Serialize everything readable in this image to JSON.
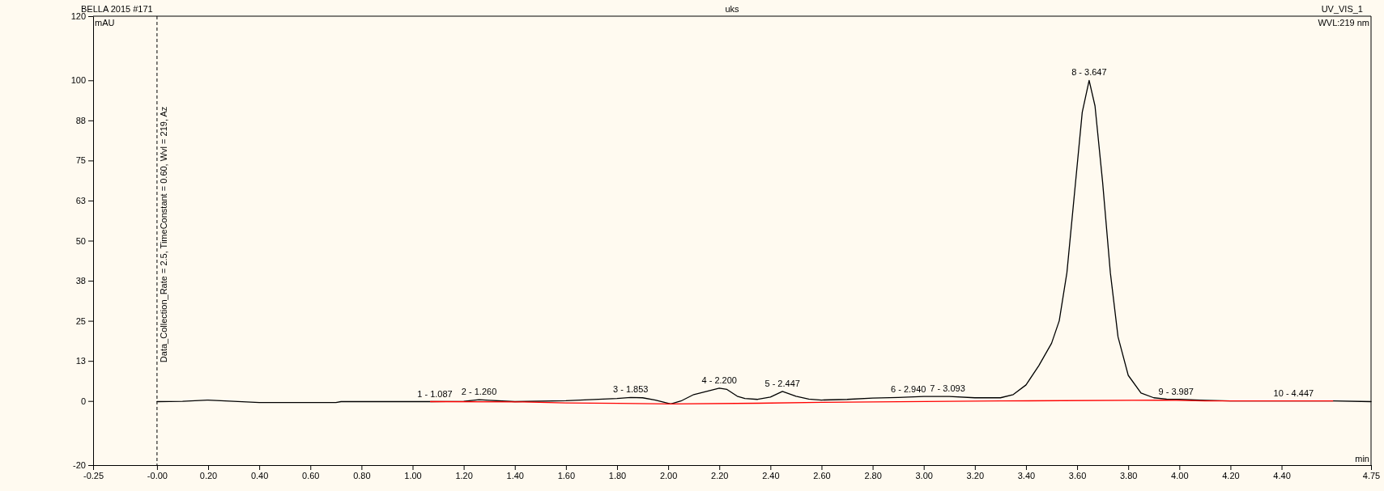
{
  "chart_data": {
    "type": "line",
    "title": "BELLA 2015 #171",
    "subtitle": "uks",
    "xlabel": "min",
    "ylabel": "mAU",
    "annotations": [
      "UV_VIS_1",
      "WVL:219 nm",
      "Data_Collection_Rate = 2.5, TimeConstant = 0.60, Wvl = 219, Az",
      {
        "text": "1 - 1.087",
        "x": 1.087,
        "y": -0.2
      },
      {
        "text": "2 - 1.260",
        "x": 1.26,
        "y": 0.4
      },
      {
        "text": "3 - 1.853",
        "x": 1.853,
        "y": 1.1
      },
      {
        "text": "4 - 2.200",
        "x": 2.2,
        "y": 4
      },
      {
        "text": "5 - 2.447",
        "x": 2.447,
        "y": 3
      },
      {
        "text": "6 - 2.940",
        "x": 2.94,
        "y": 1.2
      },
      {
        "text": "7 - 3.093",
        "x": 3.093,
        "y": 1.4
      },
      {
        "text": "8 - 3.647",
        "x": 3.647,
        "y": 100
      },
      {
        "text": "9 - 3.987",
        "x": 3.987,
        "y": 0.5
      },
      {
        "text": "10 - 4.447",
        "x": 4.447,
        "y": 0
      }
    ],
    "xlim": [
      -0.25,
      4.75
    ],
    "ylim": [
      -20,
      120
    ],
    "xticks": [
      -0.25,
      {
        "value": 0,
        "label": "-0.00"
      },
      {
        "value": 0.2,
        "label": "0.20"
      },
      {
        "value": 0.4,
        "label": "0.40"
      },
      {
        "value": 0.6,
        "label": "0.60"
      },
      {
        "value": 0.8,
        "label": "0.80"
      },
      {
        "value": 1,
        "label": "1.00"
      },
      {
        "value": 1.2,
        "label": "1.20"
      },
      {
        "value": 1.4,
        "label": "1.40"
      },
      {
        "value": 1.6,
        "label": "1.60"
      },
      {
        "value": 1.8,
        "label": "1.80"
      },
      {
        "value": 2,
        "label": "2.00"
      },
      {
        "value": 2.2,
        "label": "2.20"
      },
      {
        "value": 2.4,
        "label": "2.40"
      },
      {
        "value": 2.6,
        "label": "2.60"
      },
      {
        "value": 2.8,
        "label": "2.80"
      },
      {
        "value": 3,
        "label": "3.00"
      },
      {
        "value": 3.2,
        "label": "3.20"
      },
      {
        "value": 3.4,
        "label": "3.40"
      },
      {
        "value": 3.6,
        "label": "3.60"
      },
      {
        "value": 3.8,
        "label": "3.80"
      },
      {
        "value": 4,
        "label": "4.00"
      },
      {
        "value": 4.2,
        "label": "4.20"
      },
      {
        "value": 4.4,
        "label": "4.40"
      },
      4.75
    ],
    "yticks": [
      -20,
      0,
      {
        "value": 12.5,
        "label": "13"
      },
      25,
      {
        "value": 37.5,
        "label": "38"
      },
      50,
      {
        "value": 62.5,
        "label": "63"
      },
      75,
      {
        "value": 87.5,
        "label": "88"
      },
      100,
      120
    ],
    "ref_lines": [
      {
        "axis": "x",
        "value": 0,
        "color": "#000000",
        "line_style": "dashed"
      }
    ],
    "grid": false,
    "marker": "none",
    "line_style": "solid",
    "series": [
      {
        "color": "#000000",
        "x": [
          0,
          0.1,
          0.2,
          0.3,
          0.4,
          0.7,
          0.72,
          1,
          1.07,
          1.2,
          1.26,
          1.3,
          1.4,
          1.6,
          1.8,
          1.853,
          1.9,
          1.95,
          2.01,
          2.05,
          2.1,
          2.2,
          2.23,
          2.27,
          2.3,
          2.35,
          2.4,
          2.447,
          2.5,
          2.55,
          2.6,
          2.7,
          2.8,
          2.9,
          3,
          3.1,
          3.2,
          3.3,
          3.35,
          3.4,
          3.45,
          3.5,
          3.53,
          3.56,
          3.59,
          3.62,
          3.647,
          3.67,
          3.7,
          3.73,
          3.76,
          3.8,
          3.85,
          3.9,
          3.95,
          4,
          4.1,
          4.2,
          4.447,
          4.6,
          4.75
        ],
        "values": [
          -0.2,
          -0.1,
          0.3,
          -0.1,
          -0.5,
          -0.5,
          -0.2,
          -0.2,
          -0.2,
          -0.1,
          0.4,
          0.2,
          -0.2,
          0.1,
          0.8,
          1.1,
          1,
          0.3,
          -0.9,
          0,
          2,
          4,
          3.6,
          1.5,
          0.8,
          0.5,
          1.2,
          3,
          1.5,
          0.6,
          0.3,
          0.5,
          0.9,
          1.1,
          1.4,
          1.4,
          1,
          1,
          2,
          5,
          11,
          18,
          25,
          40,
          65,
          90,
          100,
          92,
          68,
          40,
          20,
          8,
          2.5,
          1,
          0.6,
          0.5,
          0.2,
          0,
          0,
          0,
          -0.2
        ]
      },
      {
        "color": "#ff0000",
        "x": [
          1.07,
          1.43,
          1.6,
          2.01,
          2.35,
          2.6,
          3.3,
          3.95,
          4.1,
          4.6
        ],
        "values": [
          -0.2,
          -0.3,
          -0.6,
          -0.9,
          -0.7,
          -0.4,
          0,
          0.3,
          0,
          0
        ]
      }
    ]
  }
}
